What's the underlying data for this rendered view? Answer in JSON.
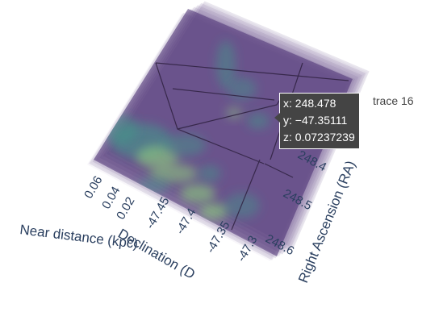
{
  "chart_data": {
    "type": "heatmap",
    "subtype": "3d-volume",
    "colorscale": "viridis",
    "opacity": "semi-transparent",
    "axes": {
      "x": {
        "title": "Right Ascension (RA)",
        "ticks": [
          "248.4",
          "248.5",
          "248.6"
        ],
        "range": [
          248.35,
          248.65
        ]
      },
      "y": {
        "title": "Declination (D",
        "ticks": [
          "-47.45",
          "-47.4",
          "-47.35",
          "-47.3"
        ],
        "range": [
          -47.48,
          -47.28
        ]
      },
      "z": {
        "title": "Near distance (kpc)",
        "ticks": [
          "0.06",
          "0.04",
          "0.02"
        ],
        "range": [
          0.0,
          0.07
        ]
      }
    },
    "hover": {
      "x": "x: 248.478",
      "y": "y: −47.35111",
      "z": "z: 0.07237239",
      "trace": "trace 16"
    },
    "legend": "none",
    "grid": true
  },
  "colors": {
    "volume_base": "#4b2f73",
    "volume_light": "#b7a8cf",
    "high_intensity": "#8fd07e",
    "mid_intensity": "#3f9a8a",
    "tick_text": "#2a3f5f",
    "hover_bg": "#444444"
  }
}
